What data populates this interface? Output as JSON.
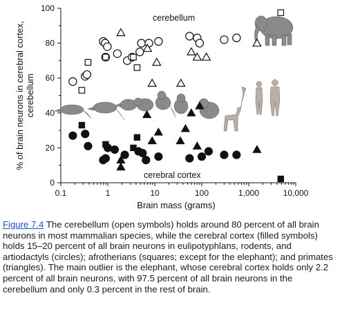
{
  "figure_link": "Figure 7.4",
  "caption_text": " The cerebellum (open symbols) holds around 80 percent of all brain neurons in most mammalian species, while the cerebral cortex (filled symbols) holds 15–20 percent of all brain neurons in eulipotyphlans, rodents, and artiodactyls (circles); afrotherians (squares; except for the elephant); and primates (triangles). The main outlier is the elephant, whose cerebral cortex holds only 2.2 percent of all brain neurons, with 97.5 percent of all brain neurons in the cerebellum and only 0.3 percent in the rest of brain.",
  "colors": {
    "link": "#1a56c4",
    "marks": "#111111"
  },
  "chart_data": {
    "type": "scatter",
    "title": "",
    "xlabel": "Brain mass (grams)",
    "ylabel": "% of brain neurons in cerebral cortex, cerebellum",
    "xscale": "log",
    "xlim": [
      0.1,
      10000
    ],
    "ylim": [
      0,
      100
    ],
    "x_tick_values": [
      0.1,
      1,
      10,
      100,
      1000,
      10000
    ],
    "x_tick_labels": [
      "0.1",
      "1",
      "10",
      "100",
      "1,000",
      "10,000"
    ],
    "y_tick_values": [
      0,
      20,
      40,
      60,
      80,
      100
    ],
    "y_tick_labels": [
      "0",
      "20",
      "40",
      "60",
      "80",
      "100"
    ],
    "grid": false,
    "annotations": [
      "cerebellum",
      "cerebral cortex"
    ],
    "illustrations": [
      "elephant",
      "shrew",
      "rat",
      "mouse",
      "guinea-pig",
      "marmoset",
      "galago",
      "agouti",
      "monkey",
      "macaque",
      "giraffe",
      "woman",
      "man"
    ],
    "series": [
      {
        "region": "cerebellum",
        "group": "eulipotyphla-rodents-artiodactyls",
        "marker": "circle",
        "fill": "open",
        "points": [
          [
            0.18,
            58
          ],
          [
            0.33,
            61
          ],
          [
            0.36,
            62
          ],
          [
            0.8,
            81
          ],
          [
            0.88,
            80
          ],
          [
            0.9,
            72
          ],
          [
            0.98,
            78
          ],
          [
            1.6,
            74
          ],
          [
            2.6,
            70
          ],
          [
            3.3,
            72
          ],
          [
            4.8,
            75
          ],
          [
            5.2,
            80
          ],
          [
            7.5,
            80
          ],
          [
            12,
            81
          ],
          [
            55,
            84
          ],
          [
            80,
            83
          ],
          [
            90,
            80
          ],
          [
            300,
            82
          ],
          [
            550,
            83
          ]
        ]
      },
      {
        "region": "cerebellum",
        "group": "afrotheria",
        "marker": "square",
        "fill": "open",
        "points": [
          [
            0.28,
            53
          ],
          [
            0.38,
            69
          ],
          [
            0.9,
            72
          ],
          [
            3.5,
            72
          ],
          [
            4.2,
            66
          ],
          [
            4800,
            97.5
          ]
        ]
      },
      {
        "region": "cerebellum",
        "group": "primates",
        "marker": "triangle",
        "fill": "open",
        "points": [
          [
            1.9,
            86
          ],
          [
            7,
            77
          ],
          [
            11,
            69
          ],
          [
            8.8,
            57
          ],
          [
            36,
            57
          ],
          [
            60,
            75
          ],
          [
            80,
            72
          ],
          [
            125,
            72
          ],
          [
            1500,
            80
          ]
        ]
      },
      {
        "region": "cerebral cortex",
        "group": "eulipotyphla-rodents-artiodactyls",
        "marker": "circle",
        "fill": "filled",
        "points": [
          [
            0.18,
            27
          ],
          [
            0.33,
            28
          ],
          [
            0.38,
            21
          ],
          [
            0.8,
            13
          ],
          [
            0.9,
            14
          ],
          [
            1.0,
            20
          ],
          [
            1.4,
            19
          ],
          [
            2.3,
            16
          ],
          [
            4.5,
            18
          ],
          [
            5.5,
            17
          ],
          [
            6.5,
            13
          ],
          [
            12,
            15
          ],
          [
            55,
            14
          ],
          [
            100,
            15
          ],
          [
            140,
            18
          ],
          [
            300,
            16
          ],
          [
            550,
            16
          ]
        ]
      },
      {
        "region": "cerebral cortex",
        "group": "afrotheria",
        "marker": "square",
        "fill": "filled",
        "points": [
          [
            0.28,
            33
          ],
          [
            0.9,
            22
          ],
          [
            3.5,
            20
          ],
          [
            4.2,
            26
          ],
          [
            4800,
            2.2
          ]
        ]
      },
      {
        "region": "cerebral cortex",
        "group": "primates",
        "marker": "triangle",
        "fill": "filled",
        "points": [
          [
            1.9,
            9
          ],
          [
            1.9,
            13
          ],
          [
            6.8,
            39
          ],
          [
            8.8,
            24
          ],
          [
            12,
            29
          ],
          [
            35,
            24
          ],
          [
            45,
            31
          ],
          [
            60,
            40
          ],
          [
            80,
            21
          ],
          [
            90,
            44
          ],
          [
            1500,
            19
          ]
        ]
      }
    ]
  }
}
